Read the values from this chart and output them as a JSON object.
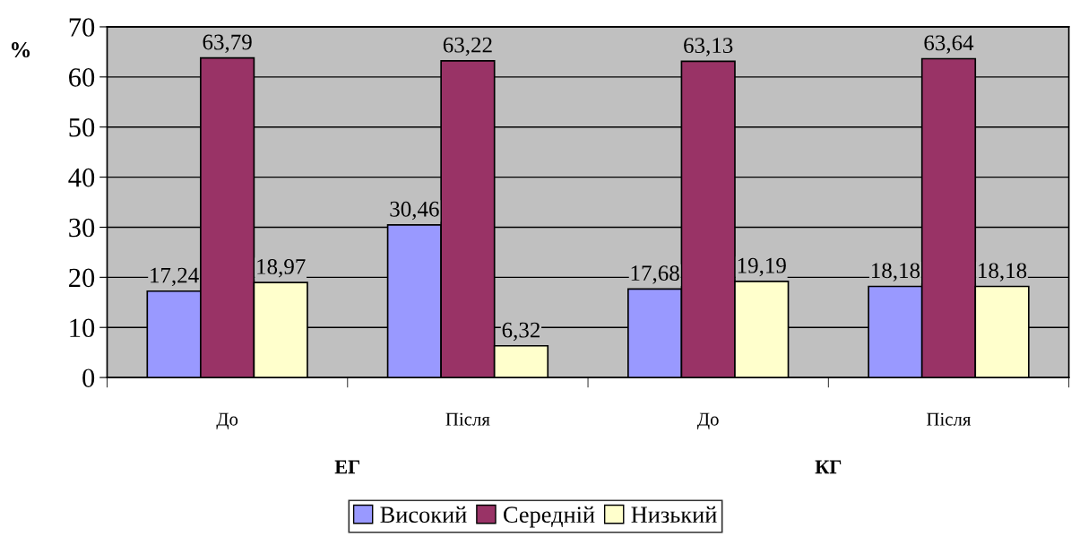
{
  "chart_data": {
    "type": "bar",
    "categories": [
      "До",
      "Після",
      "До",
      "Після"
    ],
    "series": [
      {
        "name": "Високий",
        "color": "#9999ff",
        "values": [
          17.24,
          30.46,
          17.68,
          18.18
        ],
        "value_labels": [
          "17,24",
          "30,46",
          "17,68",
          "18,18"
        ]
      },
      {
        "name": "Середній",
        "color": "#993366",
        "values": [
          63.79,
          63.22,
          63.13,
          63.64
        ],
        "value_labels": [
          "63,79",
          "63,22",
          "63,13",
          "63,64"
        ]
      },
      {
        "name": "Низький",
        "color": "#ffffcc",
        "values": [
          18.97,
          6.32,
          19.19,
          18.18
        ],
        "value_labels": [
          "18,97",
          "6,32",
          "19,19",
          "18,18"
        ]
      }
    ],
    "ylabel": "%",
    "ylim": [
      0,
      70
    ],
    "yticks": [
      0,
      10,
      20,
      30,
      40,
      50,
      60,
      70
    ],
    "annotations": [
      "ЕГ",
      "КГ"
    ],
    "grid": "y",
    "legend": "bottom"
  }
}
